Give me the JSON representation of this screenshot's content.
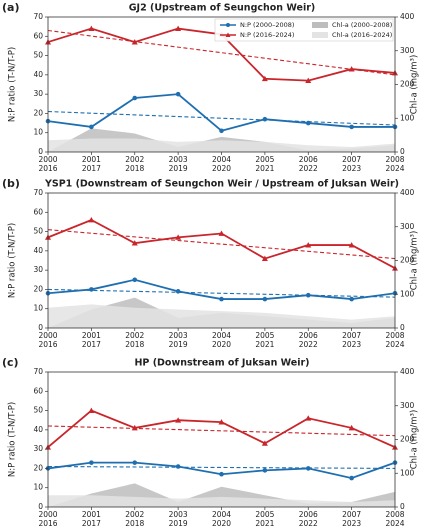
{
  "chart_data": [
    {
      "type": "line",
      "panel_label": "(a)",
      "title": "GJ2 (Upstream of Seungchon Weir)",
      "categories": [
        [
          "2000",
          "2016"
        ],
        [
          "2001",
          "2017"
        ],
        [
          "2002",
          "2018"
        ],
        [
          "2003",
          "2019"
        ],
        [
          "2004",
          "2020"
        ],
        [
          "2005",
          "2021"
        ],
        [
          "2006",
          "2022"
        ],
        [
          "2007",
          "2023"
        ],
        [
          "2008",
          "2024"
        ]
      ],
      "ylabel": "N:P ratio (T-N/T-P)",
      "y2label": "Chl-a (mg/m³)",
      "ylim": [
        0,
        70
      ],
      "yticks": [
        0,
        10,
        20,
        30,
        40,
        50,
        60,
        70
      ],
      "y2lim": [
        0,
        400
      ],
      "y2ticks": [
        0,
        100,
        200,
        300,
        400
      ],
      "legend": "upper right",
      "series": [
        {
          "name": "N:P (2000–2008)",
          "color": "#1f6fb0",
          "marker": "circle",
          "values": [
            16,
            13,
            28,
            30,
            11,
            17,
            15,
            13,
            13
          ],
          "trend": [
            21,
            14
          ]
        },
        {
          "name": "N:P (2016–2024)",
          "color": "#c9252b",
          "marker": "triangle",
          "values": [
            57,
            64,
            57,
            64,
            61,
            38,
            37,
            43,
            41
          ],
          "trend": [
            63,
            40
          ]
        },
        {
          "name": "Chl-a (2000–2008)",
          "color": "#bdbdbd",
          "type": "area",
          "axis": "y2",
          "values": [
            0,
            70,
            55,
            15,
            45,
            30,
            5,
            10,
            20
          ]
        },
        {
          "name": "Chl-a (2016–2024)",
          "color": "#e3e3e3",
          "type": "area",
          "axis": "y2",
          "values": [
            35,
            40,
            40,
            30,
            35,
            30,
            20,
            15,
            25
          ]
        }
      ]
    },
    {
      "type": "line",
      "panel_label": "(b)",
      "title": "YSP1 (Downstream of Seungchon Weir / Upstream of Juksan Weir)",
      "categories": [
        [
          "2000",
          "2016"
        ],
        [
          "2001",
          "2017"
        ],
        [
          "2002",
          "2018"
        ],
        [
          "2003",
          "2019"
        ],
        [
          "2004",
          "2020"
        ],
        [
          "2005",
          "2021"
        ],
        [
          "2006",
          "2022"
        ],
        [
          "2007",
          "2023"
        ],
        [
          "2008",
          "2024"
        ]
      ],
      "ylabel": "N:P ratio (T-N/T-P)",
      "y2label": "Chl-a (mg/m³)",
      "ylim": [
        0,
        70
      ],
      "yticks": [
        0,
        10,
        20,
        30,
        40,
        50,
        60,
        70
      ],
      "y2lim": [
        0,
        400
      ],
      "y2ticks": [
        0,
        100,
        200,
        300,
        400
      ],
      "series": [
        {
          "name": "N:P (2000–2008)",
          "color": "#1f6fb0",
          "marker": "circle",
          "values": [
            18,
            20,
            25,
            19,
            15,
            15,
            17,
            15,
            18
          ],
          "trend": [
            20,
            16
          ]
        },
        {
          "name": "N:P (2016–2024)",
          "color": "#c9252b",
          "marker": "triangle",
          "values": [
            47,
            56,
            44,
            47,
            49,
            36,
            43,
            43,
            31
          ],
          "trend": [
            51,
            36
          ]
        },
        {
          "name": "Chl-a (2000–2008)",
          "color": "#bdbdbd",
          "type": "area",
          "axis": "y2",
          "values": [
            0,
            55,
            90,
            30,
            45,
            35,
            25,
            15,
            30
          ]
        },
        {
          "name": "Chl-a (2016–2024)",
          "color": "#e3e3e3",
          "type": "area",
          "axis": "y2",
          "values": [
            60,
            70,
            60,
            55,
            50,
            45,
            35,
            25,
            35
          ]
        }
      ]
    },
    {
      "type": "line",
      "panel_label": "(c)",
      "title": "HP (Downstream of Juksan Weir)",
      "categories": [
        [
          "2000",
          "2016"
        ],
        [
          "2001",
          "2017"
        ],
        [
          "2002",
          "2018"
        ],
        [
          "2003",
          "2019"
        ],
        [
          "2004",
          "2020"
        ],
        [
          "2005",
          "2021"
        ],
        [
          "2006",
          "2022"
        ],
        [
          "2007",
          "2023"
        ],
        [
          "2008",
          "2024"
        ]
      ],
      "ylabel": "N:P ratio (T-N/T-P)",
      "y2label": "Chl-a (mg/m³)",
      "ylim": [
        0,
        70
      ],
      "yticks": [
        0,
        10,
        20,
        30,
        40,
        50,
        60,
        70
      ],
      "y2lim": [
        0,
        400
      ],
      "y2ticks": [
        0,
        100,
        200,
        300,
        400
      ],
      "series": [
        {
          "name": "N:P (2000–2008)",
          "color": "#1f6fb0",
          "marker": "circle",
          "values": [
            20,
            23,
            23,
            21,
            17,
            19,
            20,
            15,
            23
          ],
          "trend": [
            21,
            20
          ]
        },
        {
          "name": "N:P (2016–2024)",
          "color": "#c9252b",
          "marker": "triangle",
          "values": [
            31,
            50,
            41,
            45,
            44,
            33,
            46,
            41,
            31
          ],
          "trend": [
            42,
            37
          ]
        },
        {
          "name": "Chl-a (2000–2008)",
          "color": "#bdbdbd",
          "type": "area",
          "axis": "y2",
          "values": [
            0,
            40,
            70,
            15,
            60,
            35,
            10,
            15,
            45
          ]
        },
        {
          "name": "Chl-a (2016–2024)",
          "color": "#e3e3e3",
          "type": "area",
          "axis": "y2",
          "values": [
            35,
            35,
            30,
            25,
            30,
            25,
            20,
            15,
            20
          ]
        }
      ]
    }
  ]
}
